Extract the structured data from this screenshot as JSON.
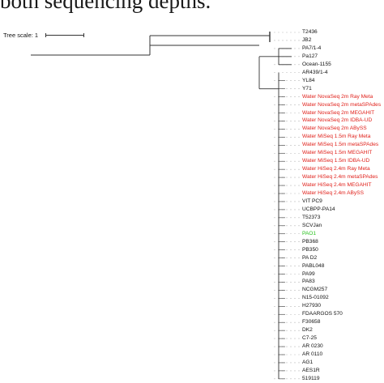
{
  "caption": "both sequencing depths.",
  "tree_scale": {
    "label": "Tree scale: 1"
  },
  "colors": {
    "red": "#e0201a",
    "green": "#27c21c",
    "black": "#111111",
    "line": "#333333",
    "guide": "#bbbbbb"
  },
  "leaves": [
    {
      "label": "T2436",
      "color": "black"
    },
    {
      "label": "JB2",
      "color": "black"
    },
    {
      "label": "PA7/1-4",
      "color": "black"
    },
    {
      "label": "Pa127",
      "color": "black"
    },
    {
      "label": "Ocean-1155",
      "color": "black"
    },
    {
      "label": "AR439/1-4",
      "color": "black"
    },
    {
      "label": "YL84",
      "color": "black"
    },
    {
      "label": "Y71",
      "color": "black"
    },
    {
      "label": "Water NovaSeq 2m Ray Meta",
      "color": "red"
    },
    {
      "label": "Water NovaSeq 2m metaSPAdes",
      "color": "red"
    },
    {
      "label": "Water NovaSeq 2m MEGAHIT",
      "color": "red"
    },
    {
      "label": "Water NovaSeq 2m IDBA-UD",
      "color": "red"
    },
    {
      "label": "Water NovaSeq 2m ABySS",
      "color": "red"
    },
    {
      "label": "Water MiSeq 1.5m Ray Meta",
      "color": "red"
    },
    {
      "label": "Water MiSeq 1.5m metaSPAdes",
      "color": "red"
    },
    {
      "label": "Water MiSeq 1.5m MEGAHIT",
      "color": "red"
    },
    {
      "label": "Water MiSeq 1.5m IDBA-UD",
      "color": "red"
    },
    {
      "label": "Water HiSeq 2.4m Ray Meta",
      "color": "red"
    },
    {
      "label": "Water HiSeq 2.4m metaSPAdes",
      "color": "red"
    },
    {
      "label": "Water HiSeq 2.4m MEGAHIT",
      "color": "red"
    },
    {
      "label": "Water HiSeq 2.4m ABySS",
      "color": "red"
    },
    {
      "label": "VIT PC9",
      "color": "black"
    },
    {
      "label": "UCBPP-PA14",
      "color": "black"
    },
    {
      "label": "T52373",
      "color": "black"
    },
    {
      "label": "SCVJan",
      "color": "black"
    },
    {
      "label": "PAO1",
      "color": "green"
    },
    {
      "label": "PB368",
      "color": "black"
    },
    {
      "label": "PB350",
      "color": "black"
    },
    {
      "label": "PA D2",
      "color": "black"
    },
    {
      "label": "PABL048",
      "color": "black"
    },
    {
      "label": "PA99",
      "color": "black"
    },
    {
      "label": "PA83",
      "color": "black"
    },
    {
      "label": "NCGM257",
      "color": "black"
    },
    {
      "label": "N15-01092",
      "color": "black"
    },
    {
      "label": "H27930",
      "color": "black"
    },
    {
      "label": "FDAARGOS 570",
      "color": "black"
    },
    {
      "label": "F30658",
      "color": "black"
    },
    {
      "label": "DK2",
      "color": "black"
    },
    {
      "label": "C7-25",
      "color": "black"
    },
    {
      "label": "AR 0230",
      "color": "black"
    },
    {
      "label": "AR 0110",
      "color": "black"
    },
    {
      "label": "AG1",
      "color": "black"
    },
    {
      "label": "AES1R",
      "color": "black"
    },
    {
      "label": "519119",
      "color": "black"
    }
  ]
}
